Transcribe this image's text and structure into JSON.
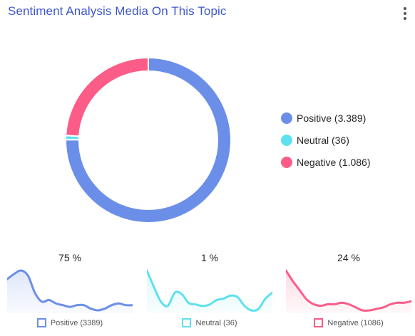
{
  "header": {
    "title": "Sentiment Analysis Media On This Topic",
    "menu_icon": "vertical-ellipsis-icon"
  },
  "chart_data": [
    {
      "type": "pie",
      "variant": "donut",
      "categories": [
        "Positive",
        "Neutral",
        "Negative"
      ],
      "values": [
        3389,
        36,
        1086
      ],
      "colors": [
        "#6b8fe8",
        "#5fe0f0",
        "#fc5c88"
      ],
      "legend": {
        "position": "right",
        "items": [
          {
            "label": "Positive (3.389)",
            "color": "#6b8fe8"
          },
          {
            "label": "Neutral (36)",
            "color": "#5fe0f0"
          },
          {
            "label": "Negative (1.086)",
            "color": "#fc5c88"
          }
        ]
      }
    },
    {
      "type": "area",
      "series_name": "Positive (3389)",
      "percent_label": "75 %",
      "color": "#6b8fe8",
      "values": [
        18,
        21,
        23,
        20,
        10,
        5,
        6,
        4,
        3,
        2,
        3,
        3,
        1,
        0,
        1,
        3,
        4,
        3,
        3
      ]
    },
    {
      "type": "area",
      "series_name": "Neutral (36)",
      "percent_label": "1 %",
      "color": "#5fe0f0",
      "values": [
        29,
        18,
        8,
        5,
        14,
        13,
        7,
        6,
        5,
        6,
        9,
        10,
        12,
        11,
        5,
        2,
        3,
        10,
        14
      ]
    },
    {
      "type": "area",
      "series_name": "Negative (1086)",
      "percent_label": "24 %",
      "color": "#fc5c88",
      "values": [
        26,
        19,
        13,
        7,
        4,
        3,
        4,
        4,
        5,
        4,
        2,
        0,
        0,
        1,
        2,
        4,
        5,
        5,
        6
      ]
    }
  ]
}
